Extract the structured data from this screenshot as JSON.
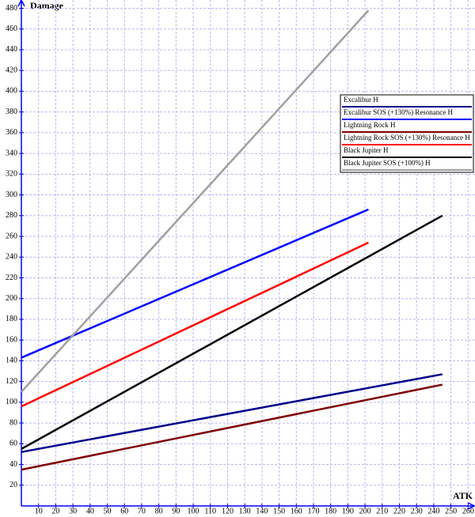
{
  "chart_data": {
    "type": "line",
    "y_label": "Damage",
    "x_label": "ATK",
    "xlim": [
      0,
      264
    ],
    "ylim": [
      0,
      488
    ],
    "xticks": [
      10,
      20,
      30,
      40,
      50,
      60,
      70,
      80,
      90,
      100,
      110,
      120,
      130,
      140,
      150,
      160,
      170,
      180,
      190,
      200,
      210,
      220,
      230,
      240,
      250,
      260
    ],
    "yticks": [
      20,
      40,
      60,
      80,
      100,
      120,
      140,
      160,
      180,
      200,
      220,
      240,
      260,
      280,
      300,
      320,
      340,
      360,
      380,
      400,
      420,
      440,
      460,
      480
    ],
    "grid": true,
    "legend": "upper right",
    "series": [
      {
        "name": "Excalibur H",
        "color": "#00008b",
        "x": [
          0,
          245
        ],
        "values": [
          52,
          127
        ]
      },
      {
        "name": "Excalibur SOS (+130%) Resonance H",
        "color": "#0000ff",
        "x": [
          0,
          202
        ],
        "values": [
          143,
          286
        ]
      },
      {
        "name": "Lightning Rock H",
        "color": "#800000",
        "x": [
          0,
          245
        ],
        "values": [
          35,
          117
        ]
      },
      {
        "name": "Lightning Rock SOS (+130%) Resonance H",
        "color": "#ff0000",
        "x": [
          0,
          202
        ],
        "values": [
          96,
          254
        ]
      },
      {
        "name": "Black Jupiter H",
        "color": "#000000",
        "x": [
          0,
          245
        ],
        "values": [
          55,
          280
        ]
      },
      {
        "name": "Black Jupiter SOS (+100%) H",
        "color": "#a0a0a0",
        "x": [
          0,
          202
        ],
        "values": [
          110,
          478
        ]
      }
    ]
  }
}
